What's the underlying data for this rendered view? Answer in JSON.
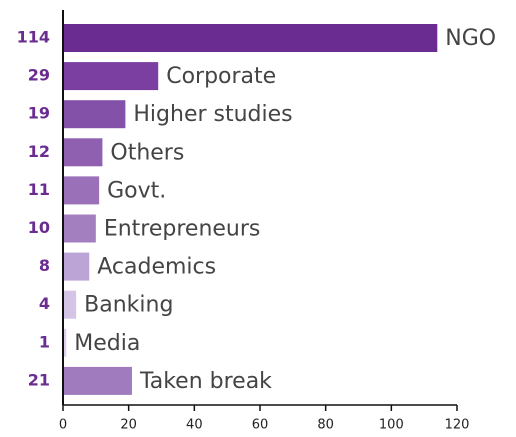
{
  "chart_data": {
    "type": "bar",
    "orientation": "horizontal",
    "categories": [
      "NGO",
      "Corporate",
      "Higher studies",
      "Others",
      "Govt.",
      "Entrepreneurs",
      "Academics",
      "Banking",
      "Media",
      "Taken break"
    ],
    "values": [
      114,
      29,
      19,
      12,
      11,
      10,
      8,
      4,
      1,
      21
    ],
    "colors": [
      "#6a2c91",
      "#7a3fa0",
      "#8451a8",
      "#9060b0",
      "#9a70b8",
      "#a47fc0",
      "#bda4d6",
      "#d4c4e6",
      "#ddd0ea",
      "#a07cbf"
    ],
    "xlim": [
      0,
      120
    ],
    "xticks": [
      0,
      20,
      40,
      60,
      80,
      100,
      120
    ],
    "grid": false
  }
}
